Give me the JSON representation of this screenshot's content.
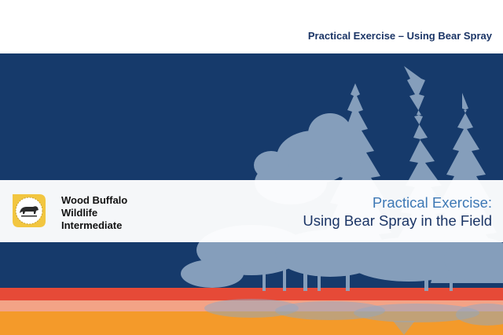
{
  "header": {
    "title": "Practical Exercise – Using Bear Spray"
  },
  "organization": {
    "logo_icon": "bear-icon",
    "name_lines": [
      "Wood Buffalo",
      "Wildlife",
      "Intermediate"
    ]
  },
  "presentation": {
    "title_line1": "Practical Exercise:",
    "title_line2": "Using Bear Spray in the Field"
  },
  "colors": {
    "navy": "#163a6b",
    "tree_silhouette": "#8fa7c2",
    "accent_red": "#e64a37",
    "accent_salmon": "#f3a386",
    "accent_orange": "#f49a2a",
    "logo_gold": "#f2c640",
    "title_light_blue": "#3d78b5",
    "title_dark_blue": "#1b3566"
  }
}
